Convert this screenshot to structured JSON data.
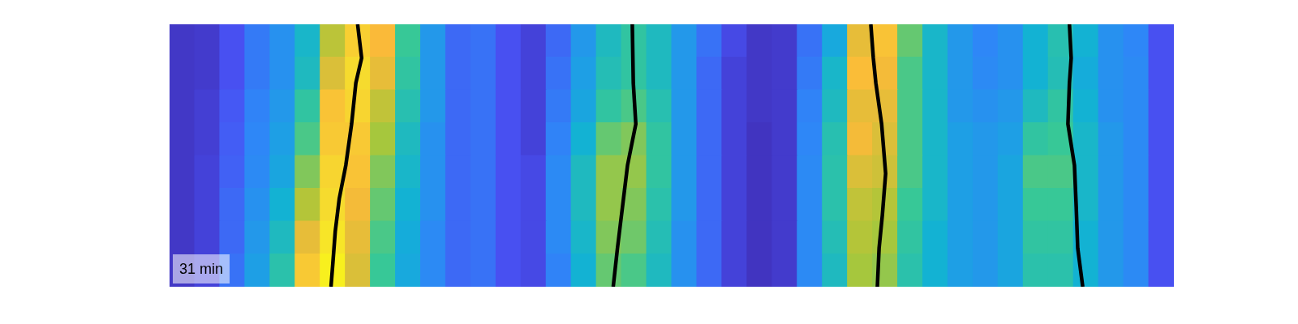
{
  "chart_data": {
    "type": "heatmap",
    "xlim": [
      0,
      40
    ],
    "ylim": [
      0,
      8
    ],
    "tick_labels": false,
    "grid": false,
    "clim": [
      0,
      1
    ],
    "cells": [
      [
        0.05,
        0.06,
        0.12,
        0.22,
        0.28,
        0.4,
        0.65,
        0.82,
        0.75,
        0.5,
        0.3,
        0.18,
        0.2,
        0.12,
        0.08,
        0.18,
        0.3,
        0.42,
        0.48,
        0.42,
        0.3,
        0.2,
        0.1,
        0.05,
        0.06,
        0.2,
        0.35,
        0.72,
        0.78,
        0.55,
        0.4,
        0.3,
        0.25,
        0.28,
        0.38,
        0.45,
        0.38,
        0.28,
        0.25,
        0.12
      ],
      [
        0.05,
        0.06,
        0.12,
        0.22,
        0.28,
        0.42,
        0.7,
        0.86,
        0.72,
        0.48,
        0.3,
        0.18,
        0.2,
        0.12,
        0.08,
        0.2,
        0.32,
        0.44,
        0.48,
        0.42,
        0.3,
        0.18,
        0.08,
        0.05,
        0.06,
        0.22,
        0.4,
        0.76,
        0.74,
        0.52,
        0.4,
        0.3,
        0.26,
        0.28,
        0.38,
        0.44,
        0.36,
        0.28,
        0.26,
        0.12
      ],
      [
        0.05,
        0.07,
        0.14,
        0.24,
        0.3,
        0.48,
        0.78,
        0.84,
        0.66,
        0.45,
        0.3,
        0.18,
        0.2,
        0.12,
        0.08,
        0.22,
        0.34,
        0.48,
        0.52,
        0.45,
        0.3,
        0.18,
        0.08,
        0.05,
        0.06,
        0.24,
        0.42,
        0.72,
        0.72,
        0.52,
        0.4,
        0.3,
        0.28,
        0.3,
        0.42,
        0.48,
        0.38,
        0.28,
        0.26,
        0.12
      ],
      [
        0.05,
        0.07,
        0.15,
        0.25,
        0.32,
        0.52,
        0.8,
        0.8,
        0.62,
        0.42,
        0.28,
        0.18,
        0.2,
        0.12,
        0.08,
        0.24,
        0.38,
        0.55,
        0.58,
        0.48,
        0.3,
        0.18,
        0.08,
        0.04,
        0.06,
        0.25,
        0.45,
        0.74,
        0.7,
        0.52,
        0.4,
        0.32,
        0.3,
        0.32,
        0.48,
        0.5,
        0.4,
        0.3,
        0.26,
        0.12
      ],
      [
        0.05,
        0.08,
        0.16,
        0.26,
        0.34,
        0.58,
        0.84,
        0.78,
        0.58,
        0.4,
        0.28,
        0.18,
        0.2,
        0.12,
        0.1,
        0.26,
        0.42,
        0.6,
        0.6,
        0.48,
        0.3,
        0.18,
        0.08,
        0.04,
        0.06,
        0.26,
        0.46,
        0.7,
        0.68,
        0.52,
        0.4,
        0.32,
        0.3,
        0.34,
        0.52,
        0.52,
        0.4,
        0.3,
        0.26,
        0.12
      ],
      [
        0.05,
        0.08,
        0.18,
        0.28,
        0.38,
        0.64,
        0.86,
        0.74,
        0.55,
        0.38,
        0.28,
        0.18,
        0.2,
        0.12,
        0.1,
        0.26,
        0.42,
        0.6,
        0.58,
        0.46,
        0.3,
        0.18,
        0.08,
        0.04,
        0.06,
        0.26,
        0.46,
        0.66,
        0.64,
        0.5,
        0.4,
        0.32,
        0.3,
        0.34,
        0.5,
        0.5,
        0.4,
        0.3,
        0.26,
        0.12
      ],
      [
        0.05,
        0.08,
        0.18,
        0.3,
        0.42,
        0.72,
        0.9,
        0.72,
        0.52,
        0.36,
        0.26,
        0.18,
        0.2,
        0.12,
        0.1,
        0.26,
        0.4,
        0.58,
        0.56,
        0.44,
        0.28,
        0.18,
        0.08,
        0.04,
        0.06,
        0.26,
        0.44,
        0.64,
        0.62,
        0.48,
        0.38,
        0.32,
        0.3,
        0.34,
        0.48,
        0.48,
        0.38,
        0.3,
        0.26,
        0.12
      ],
      [
        0.05,
        0.08,
        0.2,
        0.32,
        0.46,
        0.8,
        0.95,
        0.7,
        0.5,
        0.35,
        0.26,
        0.18,
        0.2,
        0.12,
        0.1,
        0.24,
        0.38,
        0.55,
        0.52,
        0.42,
        0.28,
        0.18,
        0.08,
        0.04,
        0.06,
        0.26,
        0.42,
        0.62,
        0.6,
        0.46,
        0.38,
        0.32,
        0.3,
        0.34,
        0.46,
        0.46,
        0.38,
        0.3,
        0.26,
        0.12
      ]
    ],
    "series": [
      {
        "type": "line",
        "color": "#0a165e",
        "x": [
          7.49,
          7.65,
          7.42,
          7.25,
          7.02,
          6.76,
          6.6,
          6.5,
          6.43
        ],
        "y": [
          0,
          1.03,
          1.79,
          3.04,
          4.3,
          5.31,
          6.31,
          7.32,
          8
        ]
      },
      {
        "type": "line",
        "color": "#1a2ea0",
        "x": [
          18.43,
          18.47,
          18.57,
          18.24,
          18.04,
          17.84,
          17.67
        ],
        "y": [
          0,
          1.79,
          3.04,
          4.3,
          5.56,
          6.82,
          8
        ]
      },
      {
        "type": "line",
        "color": "#5fc4d0",
        "x": [
          27.93,
          28.03,
          28.13,
          28.36,
          28.52,
          28.39,
          28.26,
          28.19
        ],
        "y": [
          0,
          1.03,
          1.79,
          3.04,
          4.55,
          5.81,
          6.82,
          8
        ]
      },
      {
        "type": "line",
        "color": "#40e8d0",
        "x": [
          35.84,
          35.91,
          35.84,
          35.78,
          36.04,
          36.11,
          36.17,
          36.37
        ],
        "y": [
          0,
          1.03,
          1.79,
          3.04,
          4.3,
          5.56,
          6.82,
          8
        ]
      }
    ],
    "annotation": "31 min"
  }
}
